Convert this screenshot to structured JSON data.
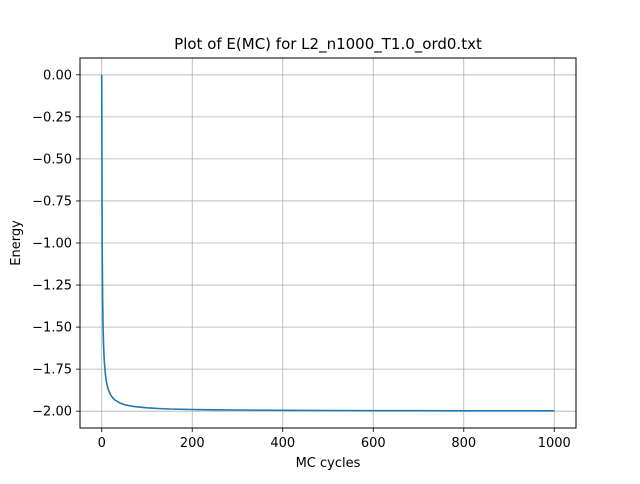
{
  "chart_data": {
    "type": "line",
    "title": "Plot of E(MC) for L2_n1000_T1.0_ord0.txt",
    "xlabel": "MC cycles",
    "ylabel": "Energy",
    "xlim": [
      -48,
      1048
    ],
    "ylim": [
      -2.1,
      0.1
    ],
    "xticks": [
      0,
      200,
      400,
      600,
      800,
      1000
    ],
    "xtick_labels": [
      "0",
      "200",
      "400",
      "600",
      "800",
      "1000"
    ],
    "yticks": [
      0.0,
      -0.25,
      -0.5,
      -0.75,
      -1.0,
      -1.25,
      -1.5,
      -1.75,
      -2.0
    ],
    "ytick_labels": [
      "0.00",
      "−0.25",
      "−0.50",
      "−0.75",
      "−1.00",
      "−1.25",
      "−1.50",
      "−1.75",
      "−2.00"
    ],
    "grid": true,
    "series": [
      {
        "color": "#1f77b4",
        "x": [
          0,
          1,
          2,
          3,
          4,
          5,
          6,
          8,
          10,
          12,
          15,
          20,
          25,
          30,
          40,
          50,
          60,
          70,
          80,
          100,
          125,
          150,
          200,
          250,
          300,
          400,
          500,
          600,
          700,
          800,
          900,
          1000
        ],
        "y": [
          0.0,
          -1.0,
          -1.33,
          -1.5,
          -1.6,
          -1.667,
          -1.714,
          -1.778,
          -1.818,
          -1.846,
          -1.875,
          -1.905,
          -1.923,
          -1.935,
          -1.951,
          -1.961,
          -1.967,
          -1.972,
          -1.975,
          -1.98,
          -1.984,
          -1.987,
          -1.99,
          -1.992,
          -1.993,
          -1.995,
          -1.996,
          -1.997,
          -1.997,
          -1.998,
          -1.998,
          -1.998
        ]
      }
    ]
  }
}
